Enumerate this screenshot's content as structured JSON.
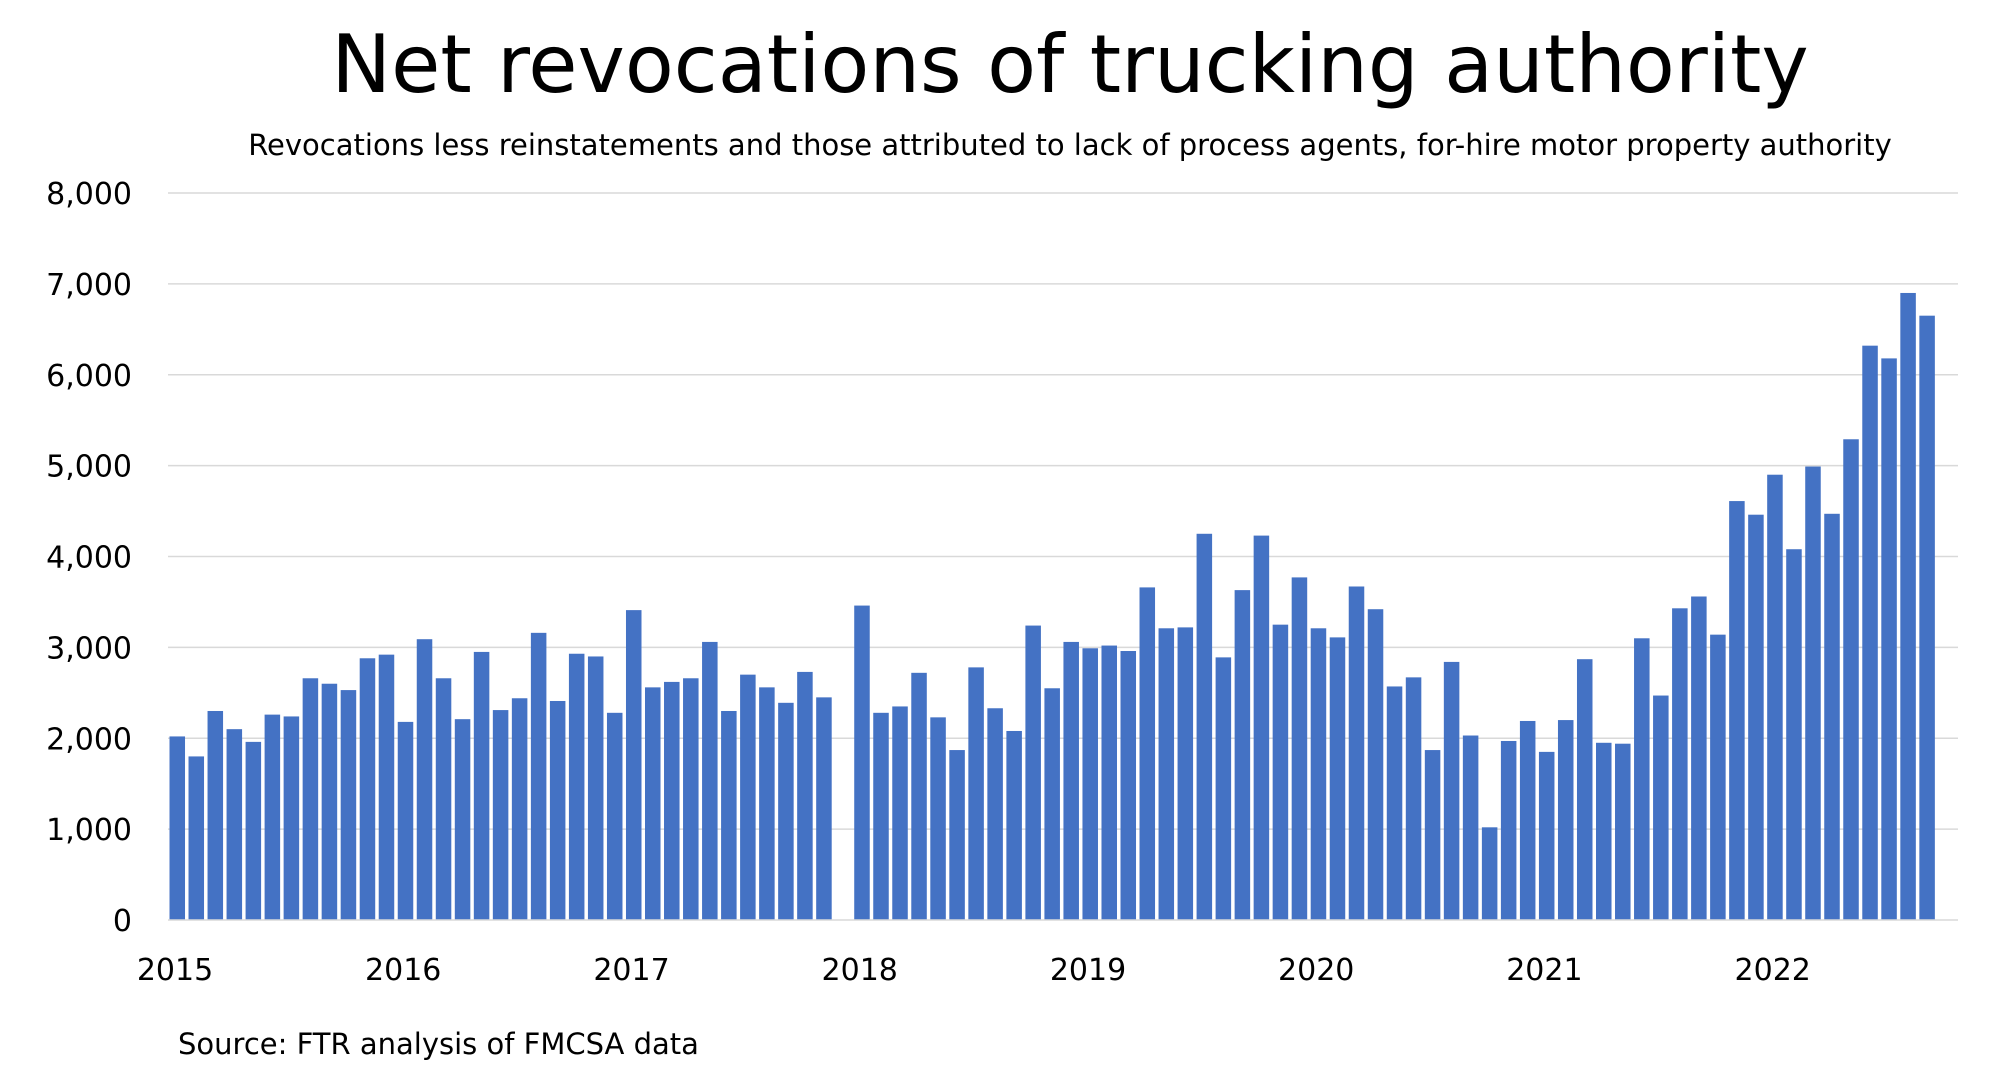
{
  "chart_data": {
    "type": "bar",
    "title": "Net revocations of trucking authority",
    "subtitle": "Revocations less reinstatements and those attributed to lack of process agents, for-hire motor property authority",
    "source": "Source: FTR analysis of FMCSA data",
    "xlabel": "",
    "ylabel": "",
    "ylim": [
      0,
      8000
    ],
    "yticks": [
      "0",
      "1,000",
      "2,000",
      "3,000",
      "4,000",
      "5,000",
      "6,000",
      "7,000",
      "8,000"
    ],
    "xticks": [
      "2015",
      "2016",
      "2017",
      "2018",
      "2019",
      "2020",
      "2021",
      "2022"
    ],
    "grid": true,
    "legend": "none",
    "bar_color": "#4472C4",
    "start": "2015-01",
    "frequency": "monthly",
    "values": [
      2020,
      1800,
      2300,
      2100,
      1960,
      2260,
      2240,
      2660,
      2600,
      2530,
      2880,
      2920,
      2180,
      3090,
      2660,
      2210,
      2950,
      2310,
      2440,
      3160,
      2410,
      2930,
      2900,
      2280,
      3410,
      2560,
      2620,
      2660,
      3060,
      2300,
      2700,
      2560,
      2390,
      2730,
      2450,
      null,
      3460,
      2280,
      2350,
      2720,
      2230,
      1870,
      2780,
      2330,
      2080,
      3240,
      2550,
      3060,
      2990,
      3020,
      2960,
      3660,
      3210,
      3220,
      4250,
      2890,
      3630,
      4230,
      3250,
      3770,
      3210,
      3110,
      3670,
      3420,
      2570,
      2670,
      1870,
      2840,
      2030,
      1020,
      1970,
      2190,
      1850,
      2200,
      2870,
      1950,
      1940,
      3100,
      2470,
      3430,
      3560,
      3140,
      4610,
      4460,
      4900,
      4080,
      4990,
      4470,
      5290,
      6320,
      6180,
      6900,
      6650
    ]
  }
}
